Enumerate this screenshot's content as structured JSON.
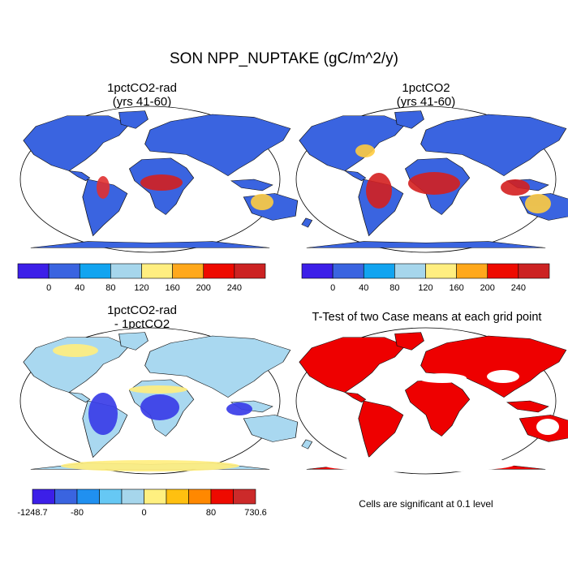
{
  "title": "SON NPP_NUPTAKE (gC/m^2/y)",
  "panels": [
    {
      "title_line1": "1pctCO2-rad",
      "title_line2": "(yrs 41-60)",
      "fill": "#3a64e0"
    },
    {
      "title_line1": "1pctCO2",
      "title_line2": "(yrs 41-60)",
      "fill": "#3a64e0"
    },
    {
      "title_line1": "1pctCO2-rad",
      "title_line2": "- 1pctCO2",
      "fill": "#a9d8f0"
    },
    {
      "title_line1": "T-Test of two Case means at each grid point",
      "title_line2": "",
      "fill": "#ee0000"
    }
  ],
  "colorbars": {
    "abs": {
      "colors": [
        "#3c1fe8",
        "#3a64e0",
        "#12a4f0",
        "#a6d6ec",
        "#ffee80",
        "#ffa81c",
        "#ee0a00",
        "#cc2222"
      ],
      "labels": [
        "0",
        "40",
        "80",
        "120",
        "160",
        "200",
        "240"
      ]
    },
    "diff": {
      "colors": [
        "#3c1fe8",
        "#3a64e0",
        "#2090f0",
        "#66c8f4",
        "#a6d6ec",
        "#fff080",
        "#ffc010",
        "#ff8800",
        "#ee0a00",
        "#cc2a2a"
      ],
      "labels": [
        "-1248.7",
        "-80",
        "0",
        "80",
        "730.6"
      ]
    }
  },
  "significance_note": "Cells are significant at 0.1 level"
}
